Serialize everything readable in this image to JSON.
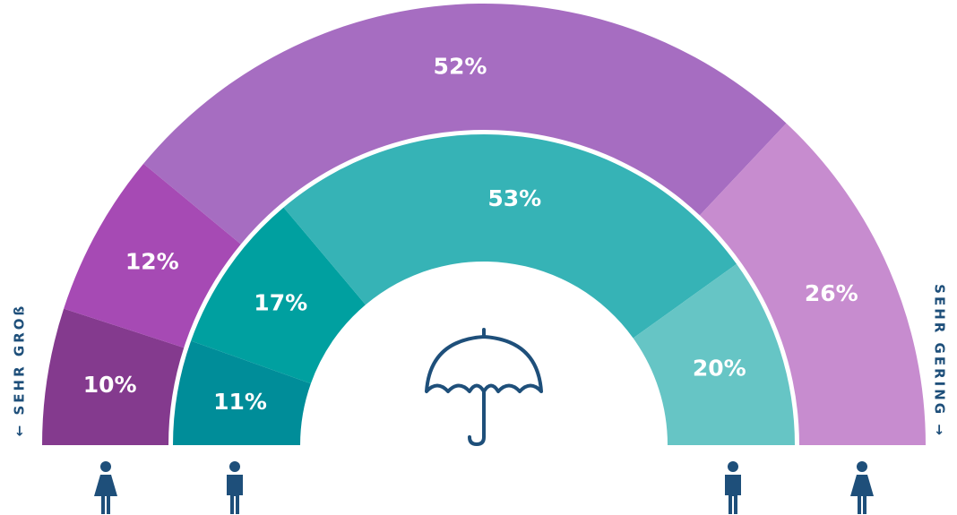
{
  "chart_data": {
    "type": "semi-donut",
    "left_label": "← SEHR GROß",
    "right_label": "SEHR GERING →",
    "series": [
      {
        "values": [
          10,
          12,
          52,
          26
        ],
        "value_labels": [
          "10%",
          "12%",
          "52%",
          "26%"
        ],
        "colors": [
          "#843a8e",
          "#a64ab4",
          "#a66dc1",
          "#c78ccf"
        ]
      },
      {
        "values": [
          11,
          17,
          53,
          20
        ],
        "value_labels": [
          "11%",
          "17%",
          "53%",
          "20%"
        ],
        "colors": [
          "#008d99",
          "#00a0a0",
          "#36b3b6",
          "#66c5c5"
        ]
      }
    ]
  }
}
